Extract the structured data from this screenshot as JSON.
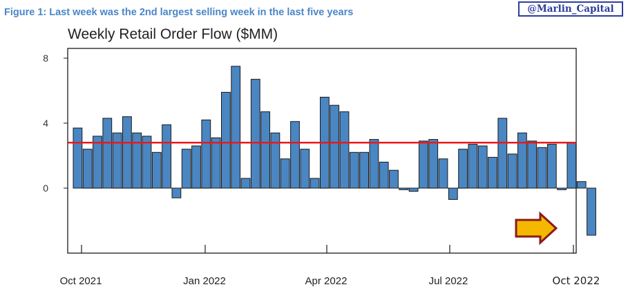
{
  "header": {
    "figure_caption": "Figure 1: Last week was the 2nd largest selling week in the last five years",
    "handle": "@Marlin_Capital"
  },
  "colors": {
    "bar_fill": "#4a86c2",
    "bar_stroke": "#1a1a1a",
    "reference_line": "#e8191b",
    "arrow_fill": "#f5b800",
    "arrow_stroke": "#8b1a1a",
    "caption": "#4a86c8",
    "handle_border": "#2c3e9c"
  },
  "icons": {
    "callout": "arrow-right-icon"
  },
  "chart_data": {
    "type": "bar",
    "title": "Weekly Retail Order Flow ($MM)",
    "xlabel": "",
    "ylabel": "",
    "ylim": [
      -4,
      8.6
    ],
    "y_ticks": [
      0,
      4,
      8
    ],
    "grid": false,
    "x_ticks": [
      "Oct 2021",
      "Jan 2022",
      "Apr 2022",
      "Jul 2022",
      "Oct 2022"
    ],
    "reference_line": 2.8,
    "highlight": "last bar",
    "values": [
      3.7,
      2.4,
      3.2,
      4.3,
      3.4,
      4.4,
      3.4,
      3.2,
      2.2,
      3.9,
      -0.6,
      2.4,
      2.6,
      4.2,
      3.1,
      5.9,
      7.5,
      0.6,
      6.7,
      4.7,
      3.4,
      1.8,
      4.1,
      2.4,
      0.6,
      5.6,
      5.1,
      4.7,
      2.2,
      2.2,
      3.0,
      1.6,
      1.1,
      -0.1,
      -0.2,
      2.9,
      3.0,
      1.8,
      -0.7,
      2.4,
      2.7,
      2.6,
      1.9,
      4.3,
      2.1,
      3.4,
      2.9,
      2.5,
      2.7,
      -0.1,
      2.8,
      0.4,
      -2.9
    ]
  }
}
